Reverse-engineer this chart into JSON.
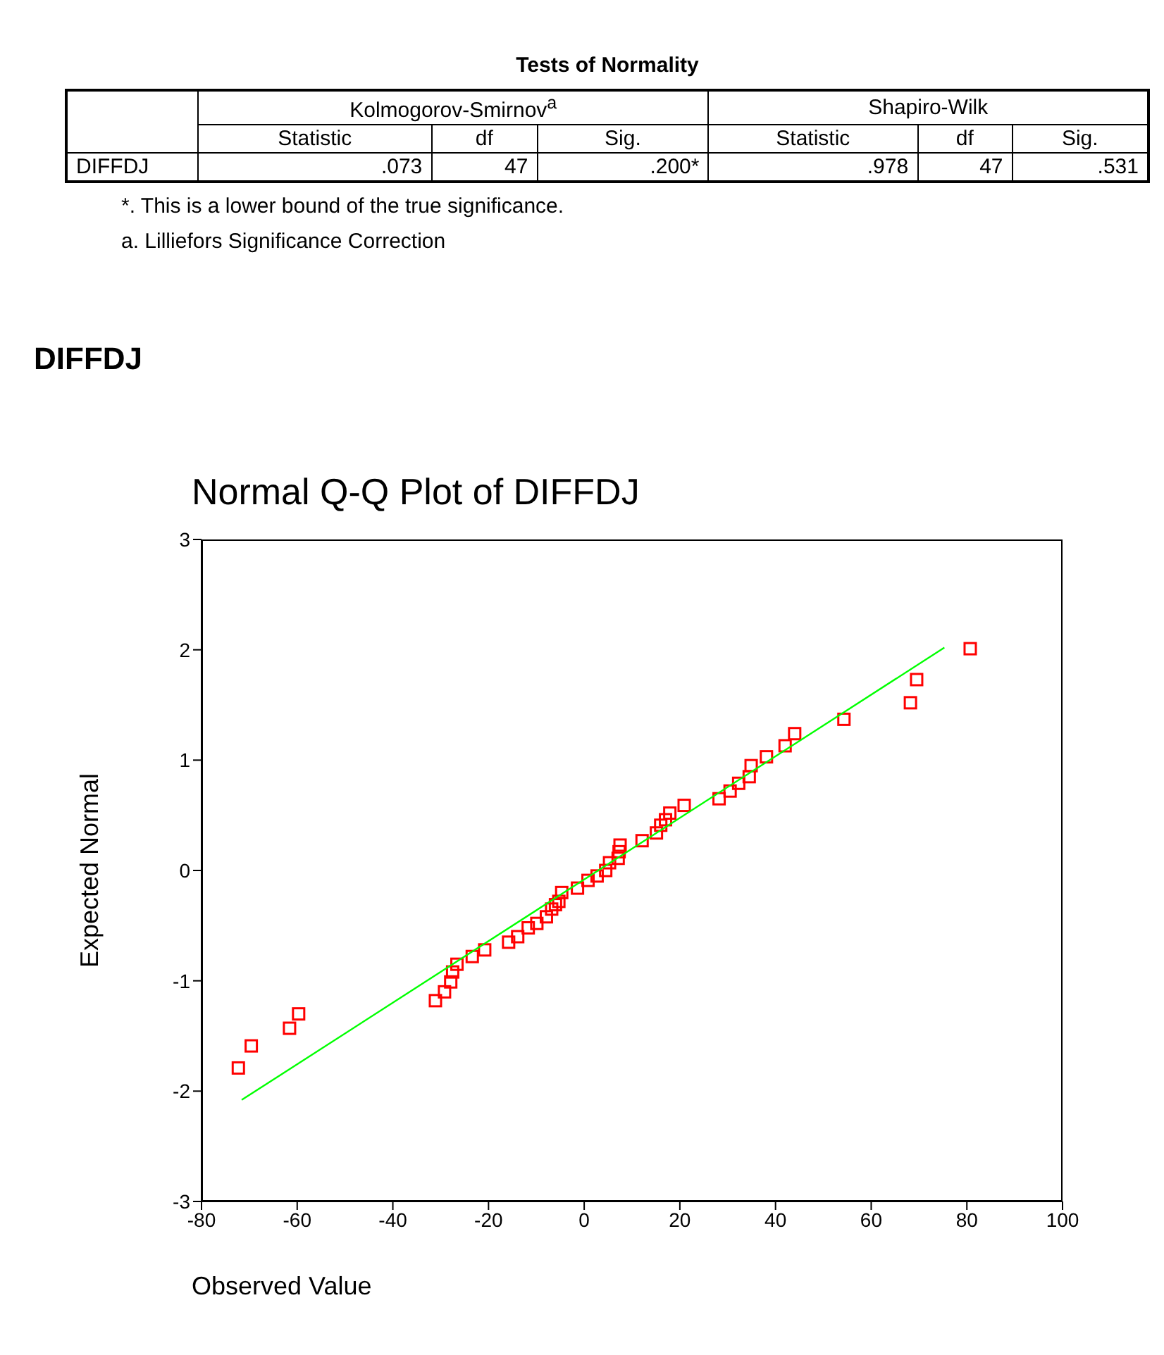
{
  "chart_data": [
    {
      "type": "other",
      "title": "Tests of Normality",
      "categories": [
        "Statistic",
        "df",
        "Sig.",
        "Statistic",
        "df",
        "Sig."
      ],
      "y_categories": [
        "DIFFDJ"
      ],
      "annotations": [
        "Kolmogorov-Smirnov$^{a}$",
        "Shapiro-Wilk",
        ".073",
        "47",
        ".200*",
        ".978",
        "47",
        ".531",
        "*. This is a lower bound of the true significance.",
        "a. Lilliefors Significance Correction"
      ]
    },
    {
      "type": "scatter",
      "subtitle": "DIFFDJ",
      "title": "Normal Q-Q Plot of DIFFDJ",
      "xlabel": "Observed Value",
      "ylabel": "Expected Normal",
      "xlim": [
        -80,
        100
      ],
      "xticks": [
        -80,
        -60,
        -40,
        -20,
        0,
        20,
        40,
        60,
        80,
        100
      ],
      "ylim": [
        -3,
        3
      ],
      "yticks": [
        -3,
        -2,
        -1,
        0,
        1,
        2,
        3
      ],
      "grid": false,
      "legend": false,
      "series": [
        {
          "type": "scatter",
          "marker": "square",
          "color": "#ff0000",
          "x": [
            -72.3,
            -69.6,
            -61.6,
            -59.7,
            -31.1,
            -29.2,
            -27.9,
            -27.5,
            -26.6,
            -23.4,
            -20.8,
            -15.8,
            -13.9,
            -11.7,
            -9.9,
            -7.9,
            -6.8,
            -6.0,
            -5.3,
            -4.7,
            -1.4,
            0.8,
            2.7,
            4.5,
            5.3,
            7.1,
            7.3,
            7.5,
            12.1,
            15.1,
            16.0,
            17.0,
            17.9,
            20.9,
            28.2,
            30.5,
            32.3,
            34.5,
            34.9,
            38.1,
            42.0,
            44.0,
            54.3,
            68.2,
            69.5,
            80.7
          ],
          "values": [
            -1.79,
            -1.59,
            -1.43,
            -1.3,
            -1.18,
            -1.1,
            -1.01,
            -0.92,
            -0.85,
            -0.78,
            -0.72,
            -0.65,
            -0.6,
            -0.52,
            -0.48,
            -0.42,
            -0.35,
            -0.31,
            -0.28,
            -0.2,
            -0.16,
            -0.09,
            -0.05,
            0.0,
            0.07,
            0.11,
            0.17,
            0.23,
            0.27,
            0.34,
            0.41,
            0.46,
            0.52,
            0.59,
            0.65,
            0.72,
            0.79,
            0.85,
            0.95,
            1.03,
            1.13,
            1.24,
            1.37,
            1.52,
            1.73,
            2.01
          ]
        },
        {
          "type": "line",
          "marker": "none",
          "line_style": "solid",
          "color": "#00ff00",
          "x": [
            -71.6,
            75.3
          ],
          "values": [
            -2.08,
            2.02
          ]
        }
      ]
    }
  ]
}
